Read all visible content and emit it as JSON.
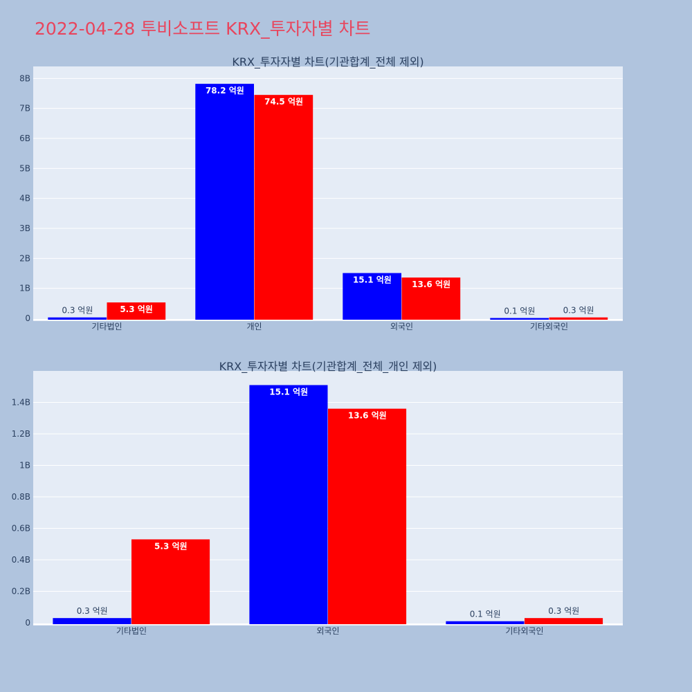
{
  "page": {
    "title": "2022-04-28 투비소프트 KRX_투자자별 차트"
  },
  "colors": {
    "page_bg": "#b0c4de",
    "plot_bg": "#e5ecf6",
    "series_a": "#0000ff",
    "series_b": "#ff0000",
    "title": "#e8455d"
  },
  "chart_data": [
    {
      "type": "bar",
      "title": "KRX_투자자별 차트(기관합계_전체 제외)",
      "categories": [
        "기타법인",
        "개인",
        "외국인",
        "기타외국인"
      ],
      "series": [
        {
          "values": [
            30000000,
            7820000000,
            1510000000,
            10000000
          ],
          "labels": [
            "0.3 억원",
            "78.2 억원",
            "15.1 억원",
            "0.1 억원"
          ],
          "color": "#0000ff"
        },
        {
          "values": [
            530000000,
            7450000000,
            1360000000,
            30000000
          ],
          "labels": [
            "5.3 억원",
            "74.5 억원",
            "13.6 억원",
            "0.3 억원"
          ],
          "color": "#ff0000"
        }
      ],
      "ylim": [
        0,
        8400000000
      ],
      "yticks": [
        0,
        1000000000,
        2000000000,
        3000000000,
        4000000000,
        5000000000,
        6000000000,
        7000000000,
        8000000000
      ],
      "ytick_labels": [
        "0",
        "1B",
        "2B",
        "3B",
        "4B",
        "5B",
        "6B",
        "7B",
        "8B"
      ],
      "grid": true,
      "xlabel": "",
      "ylabel": ""
    },
    {
      "type": "bar",
      "title": "KRX_투자자별 차트(기관합계_전체_개인 제외)",
      "categories": [
        "기타법인",
        "외국인",
        "기타외국인"
      ],
      "series": [
        {
          "values": [
            30000000,
            1510000000,
            10000000
          ],
          "labels": [
            "0.3 억원",
            "15.1 억원",
            "0.1 억원"
          ],
          "color": "#0000ff"
        },
        {
          "values": [
            530000000,
            1360000000,
            30000000
          ],
          "labels": [
            "5.3 억원",
            "13.6 억원",
            "0.3 억원"
          ],
          "color": "#ff0000"
        }
      ],
      "ylim": [
        0,
        1600000000
      ],
      "yticks": [
        0,
        200000000,
        400000000,
        600000000,
        800000000,
        1000000000,
        1200000000,
        1400000000
      ],
      "ytick_labels": [
        "0",
        "0.2B",
        "0.4B",
        "0.6B",
        "0.8B",
        "1B",
        "1.2B",
        "1.4B"
      ],
      "grid": true,
      "xlabel": "",
      "ylabel": ""
    }
  ]
}
